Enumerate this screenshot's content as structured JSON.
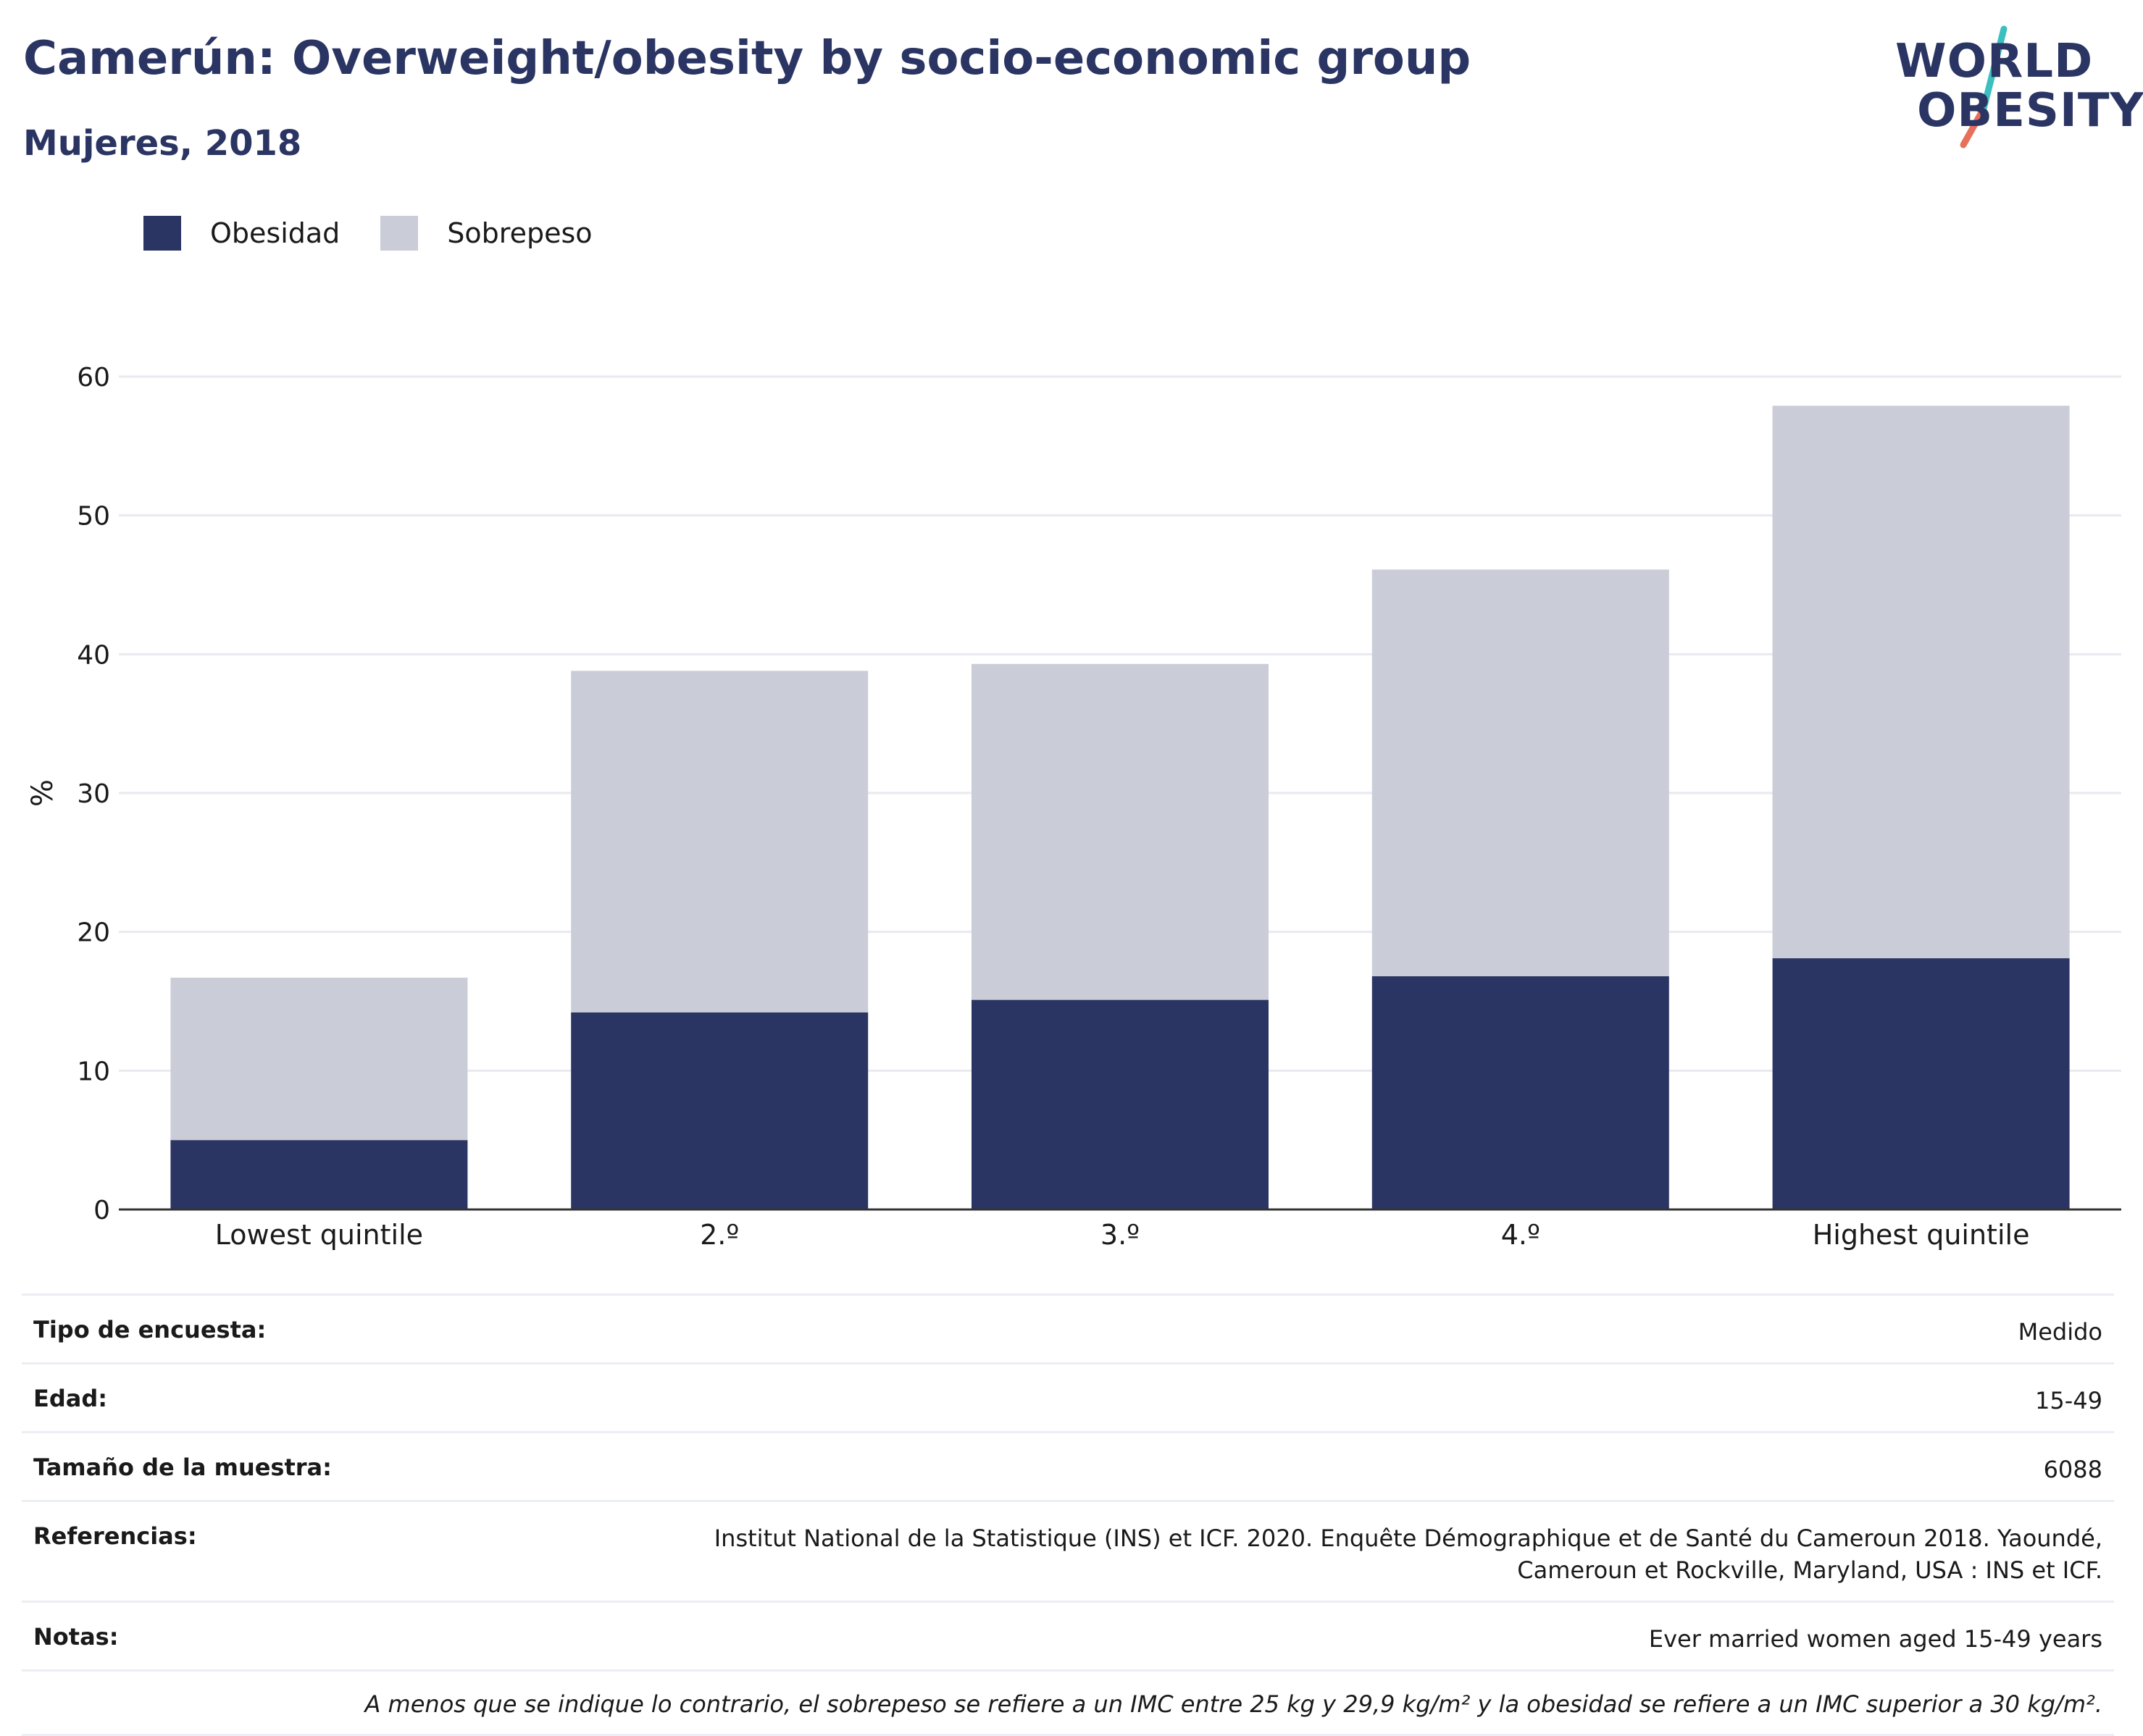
{
  "header": {
    "title": "Camerún: Overweight/obesity by socio-economic group",
    "subtitle": "Mujeres, 2018"
  },
  "logo": {
    "line1": "WORLD",
    "line2": "OBESITY"
  },
  "colors": {
    "obesidad": "#2b3563",
    "sobrepeso": "#caccd8",
    "accent_teal": "#3bbfbf",
    "accent_coral": "#e8705b",
    "grid": "#e8eaf0",
    "axis": "#333333"
  },
  "legend": {
    "items": [
      {
        "label": "Obesidad",
        "color": "#2b3563"
      },
      {
        "label": "Sobrepeso",
        "color": "#caccd8"
      }
    ]
  },
  "chart_data": {
    "type": "bar",
    "stacked": true,
    "categories": [
      "Lowest quintile",
      "2.º",
      "3.º",
      "4.º",
      "Highest quintile"
    ],
    "series": [
      {
        "name": "Obesidad",
        "values": [
          5.0,
          14.2,
          15.1,
          16.8,
          18.1
        ]
      },
      {
        "name": "Sobrepeso",
        "values": [
          11.7,
          24.6,
          24.2,
          29.3,
          39.8
        ]
      }
    ],
    "ylabel": "%",
    "ylim": [
      0,
      60
    ],
    "yticks": [
      0,
      10,
      20,
      30,
      40,
      50,
      60
    ],
    "grid": true,
    "legend_position": "top-left"
  },
  "info": {
    "rows": [
      {
        "label": "Tipo de encuesta:",
        "value": "Medido"
      },
      {
        "label": "Edad:",
        "value": "15-49"
      },
      {
        "label": "Tamaño de la muestra:",
        "value": "6088"
      },
      {
        "label": "Referencias:",
        "value": "Institut National de la Statistique (INS) et ICF. 2020. Enquête Démographique et de Santé du Cameroun 2018. Yaoundé, Cameroun et Rockville, Maryland, USA : INS et ICF."
      },
      {
        "label": "Notas:",
        "value": "Ever married women aged 15-49 years"
      }
    ],
    "footnote": "A menos que se indique lo contrario, el sobrepeso se refiere a un IMC entre 25 kg y 29,9 kg/m² y la obesidad se refiere a un IMC superior a 30 kg/m²."
  }
}
